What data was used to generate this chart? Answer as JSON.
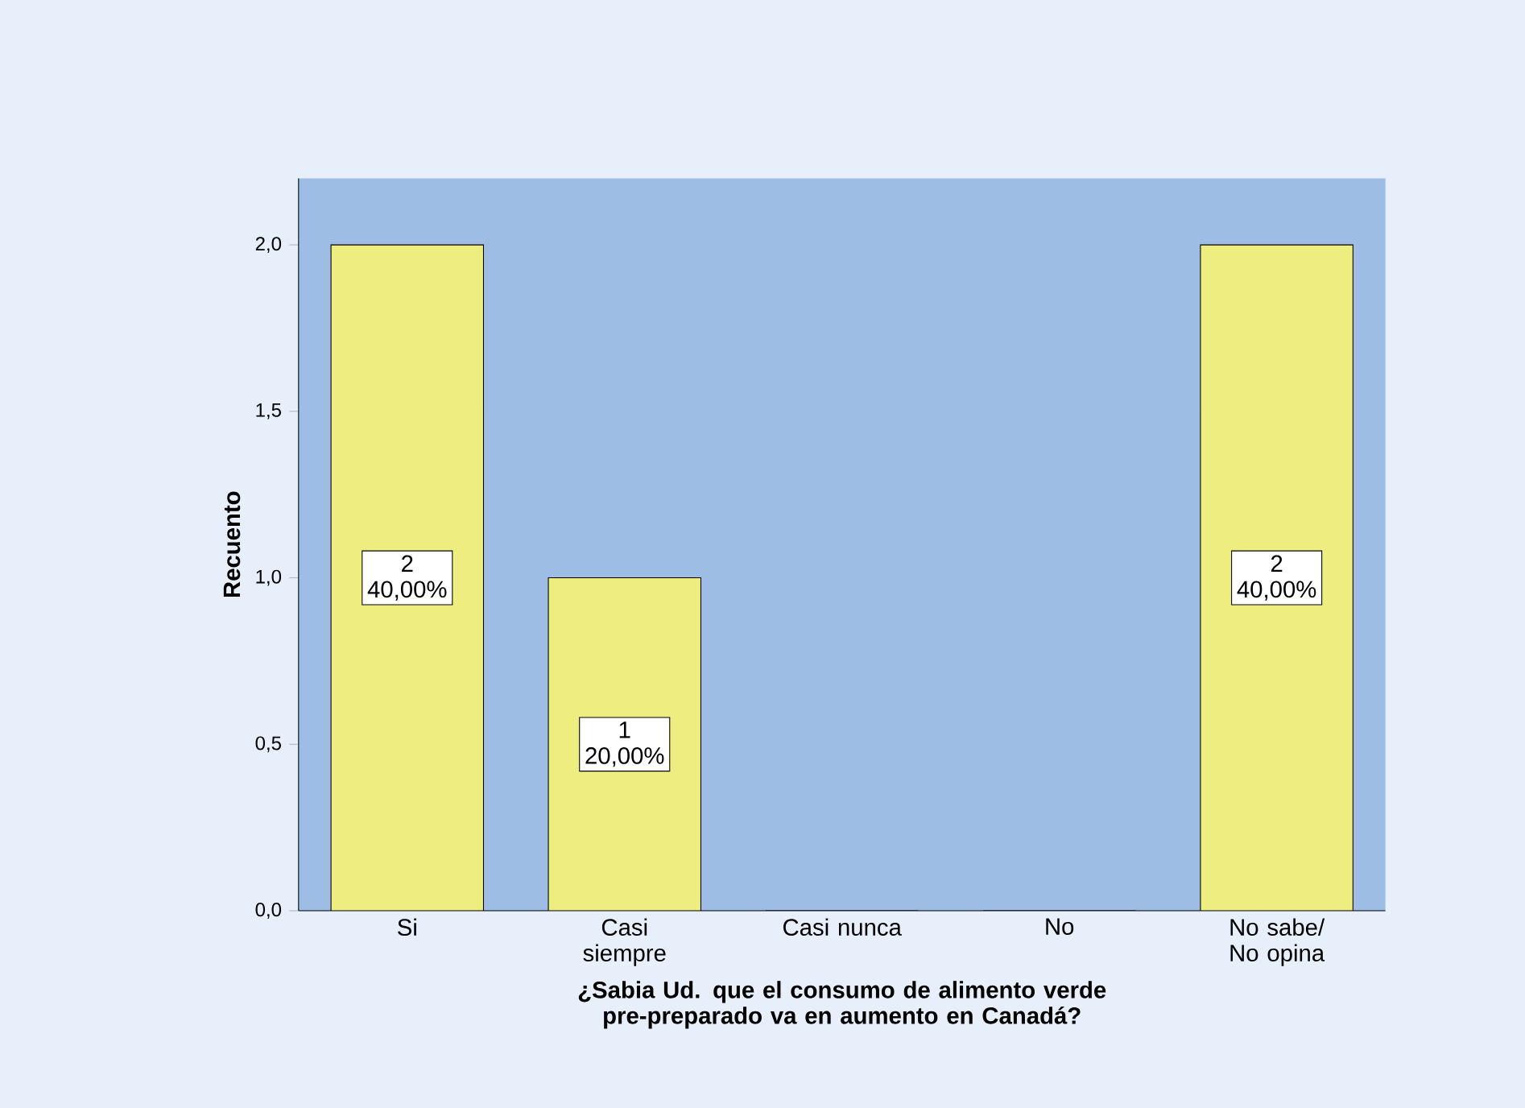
{
  "chart_data": {
    "type": "bar",
    "xlabel": "¿Sabia Ud. que el consumo de alimento verde pre-preparado va en aumento en Canadá?",
    "ylabel": "Recuento",
    "categories": [
      "Si",
      "Casi siempre",
      "Casi nunca",
      "No",
      "No sabe/ No opina"
    ],
    "values": [
      2,
      1,
      0,
      0,
      2
    ],
    "value_labels": [
      "2 40,00%",
      "1 20,00%",
      null,
      null,
      "2 40,00%"
    ],
    "color": "#eeee80",
    "ylim": [
      0,
      2.2
    ],
    "yticks": [
      {
        "value": 0,
        "label": "0,0"
      },
      {
        "value": 0.5,
        "label": "0,5"
      },
      {
        "value": 1,
        "label": "1,0"
      },
      {
        "value": 1.5,
        "label": "1,5"
      },
      {
        "value": 2,
        "label": "2,0"
      }
    ],
    "grid": false
  }
}
